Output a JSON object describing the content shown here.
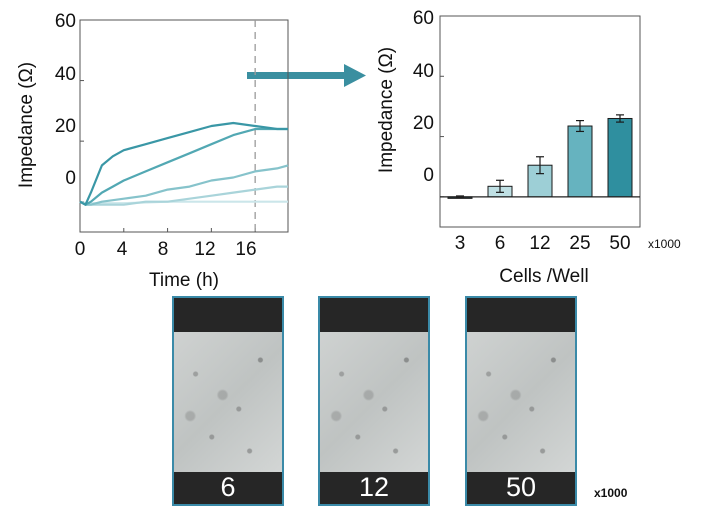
{
  "line_chart": {
    "xlabel": "Time (h)",
    "ylabel": "Impedance (Ω)",
    "y_ticks": [
      "60",
      "40",
      "20",
      "0"
    ],
    "x_ticks": [
      "0",
      "4",
      "8",
      "12",
      "16"
    ]
  },
  "bar_chart": {
    "xlabel": "Cells /Well",
    "ylabel": "Impedance (Ω)",
    "y_ticks": [
      "60",
      "40",
      "20",
      "0"
    ],
    "unit_note": "x1000"
  },
  "micrographs": {
    "labels": [
      "6",
      "12",
      "50"
    ],
    "unit_note": "x1000"
  },
  "colors": {
    "accent": "#3a8fa0",
    "series": [
      "#3a97a6",
      "#52a8b3",
      "#86c3cb",
      "#a9d4da",
      "#cbe6ea"
    ],
    "bars": [
      "#1f3a3f",
      "#bfe0e4",
      "#9dcfd6",
      "#66b3bf",
      "#2f8f9f"
    ]
  },
  "chart_data": [
    {
      "type": "line",
      "xlabel": "Time (h)",
      "ylabel": "Impedance (Ω)",
      "xlim": [
        0,
        19
      ],
      "ylim": [
        -10,
        60
      ],
      "x_ticks": [
        0,
        4,
        8,
        12,
        16
      ],
      "y_ticks": [
        0,
        20,
        40,
        60
      ],
      "marker_line_x": 16,
      "series": [
        {
          "x": [
            0,
            0.5,
            1,
            2,
            3,
            4,
            6,
            8,
            10,
            12,
            14,
            16,
            18,
            19
          ],
          "y": [
            0,
            -1,
            3,
            12,
            15,
            17,
            19,
            21,
            23,
            25,
            26,
            25,
            24,
            24
          ]
        },
        {
          "x": [
            0,
            0.5,
            1,
            2,
            3,
            4,
            6,
            8,
            10,
            12,
            14,
            16,
            18,
            19
          ],
          "y": [
            0,
            -1,
            0,
            3,
            5,
            7,
            10,
            13,
            16,
            19,
            22,
            24,
            24,
            24
          ]
        },
        {
          "x": [
            0,
            0.5,
            1,
            2,
            4,
            6,
            8,
            10,
            12,
            14,
            16,
            18,
            19
          ],
          "y": [
            0,
            -1,
            -1,
            0,
            1,
            2,
            4,
            5,
            7,
            8,
            10,
            11,
            12
          ]
        },
        {
          "x": [
            0,
            0.5,
            1,
            2,
            4,
            6,
            8,
            10,
            12,
            14,
            16,
            18,
            19
          ],
          "y": [
            0,
            -1,
            -1,
            -1,
            -1,
            0,
            0,
            1,
            2,
            3,
            4,
            5,
            5
          ]
        },
        {
          "x": [
            0,
            0.5,
            1,
            2,
            4,
            8,
            12,
            16,
            19
          ],
          "y": [
            0,
            -0.5,
            -0.5,
            -0.5,
            -0.5,
            0,
            0,
            0,
            0
          ]
        }
      ]
    },
    {
      "type": "bar",
      "xlabel": "Cells /Well",
      "ylabel": "Impedance (Ω)",
      "categories": [
        "3",
        "6",
        "12",
        "25",
        "50"
      ],
      "values": [
        0,
        3.5,
        10.5,
        23.5,
        26
      ],
      "errors": [
        0.3,
        2,
        2.8,
        1.8,
        1.2
      ],
      "ylim": [
        -10,
        60
      ],
      "y_ticks": [
        0,
        20,
        40,
        60
      ]
    }
  ]
}
